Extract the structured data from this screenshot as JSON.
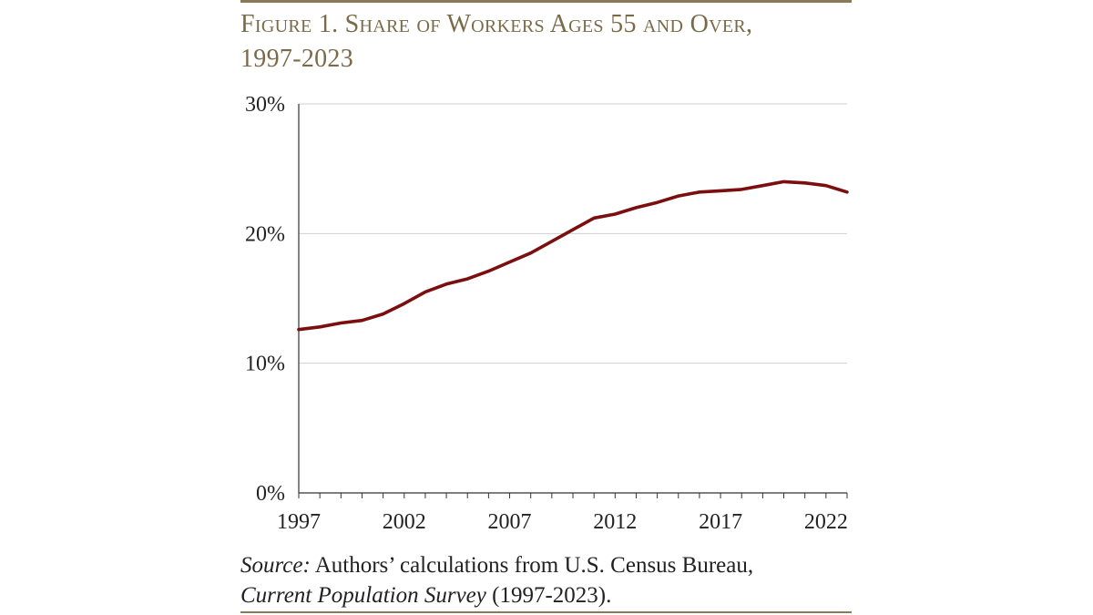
{
  "figure": {
    "title_line1": "Figure 1. Share of Workers Ages 55 and Over,",
    "title_line2": "1997-2023",
    "source_label": "Source:",
    "source_text": " Authors’ calculations from U.S. Census Bureau,",
    "source_italic": "Current Population Survey",
    "source_tail": " (1997-2023)."
  },
  "colors": {
    "line": "#7b0f0f",
    "title": "#7a6a48",
    "grid": "#cfcfcf"
  },
  "chart_data": {
    "type": "line",
    "title": "Figure 1. Share of Workers Ages 55 and Over, 1997-2023",
    "xlabel": "",
    "ylabel": "",
    "ylim": [
      0,
      30
    ],
    "xlim": [
      1997,
      2023
    ],
    "x_tick_labels": [
      "1997",
      "2002",
      "2007",
      "2012",
      "2017",
      "2022"
    ],
    "y_tick_labels": [
      "0%",
      "10%",
      "20%",
      "30%"
    ],
    "grid": "horizontal",
    "series": [
      {
        "x": [
          1997,
          1998,
          1999,
          2000,
          2001,
          2002,
          2003,
          2004,
          2005,
          2006,
          2007,
          2008,
          2009,
          2010,
          2011,
          2012,
          2013,
          2014,
          2015,
          2016,
          2017,
          2018,
          2019,
          2020,
          2021,
          2022,
          2023
        ],
        "values": [
          12.6,
          12.8,
          13.1,
          13.3,
          13.8,
          14.6,
          15.5,
          16.1,
          16.5,
          17.1,
          17.8,
          18.5,
          19.4,
          20.3,
          21.2,
          21.5,
          22.0,
          22.4,
          22.9,
          23.2,
          23.3,
          23.4,
          23.7,
          24.0,
          23.9,
          23.7,
          23.2
        ]
      }
    ]
  }
}
